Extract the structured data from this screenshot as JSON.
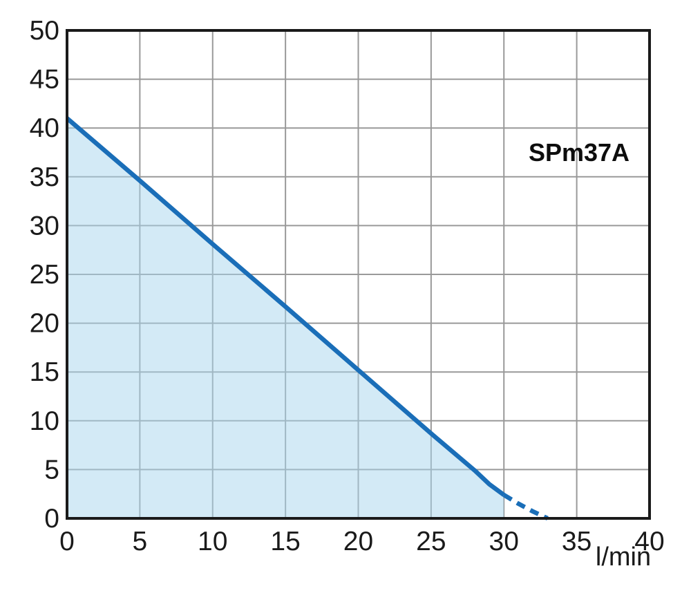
{
  "chart_data": {
    "type": "area",
    "title": "SPm37A",
    "series_label": "SPm37A",
    "xlabel": "l/min",
    "ylabel": "",
    "xlim": [
      0,
      40
    ],
    "ylim": [
      0,
      50
    ],
    "x_ticks": [
      0,
      5,
      10,
      15,
      20,
      25,
      30,
      35,
      40
    ],
    "y_ticks": [
      0,
      5,
      10,
      15,
      20,
      25,
      30,
      35,
      40,
      45,
      50
    ],
    "grid": true,
    "legend_position": "none",
    "series": [
      {
        "name": "head-curve-solid",
        "style": "solid",
        "points": [
          [
            0,
            41
          ],
          [
            5,
            34.6
          ],
          [
            10,
            28.1
          ],
          [
            15,
            21.7
          ],
          [
            20,
            15.2
          ],
          [
            25,
            8.7
          ],
          [
            28,
            4.9
          ],
          [
            29,
            3.5
          ],
          [
            30,
            2.4
          ]
        ]
      },
      {
        "name": "head-curve-dashed-extrapolation",
        "style": "dashed",
        "points": [
          [
            30,
            2.4
          ],
          [
            31,
            1.5
          ],
          [
            32,
            0.7
          ],
          [
            33,
            0
          ]
        ]
      }
    ],
    "fill_under_solid_curve": true,
    "colors": {
      "line": "#1a6eb8",
      "fill": "#a7d5ed",
      "fill_opacity": 0.5,
      "grid": "#999999",
      "border": "#1a1a1a",
      "text": "#1a1a1a"
    }
  }
}
